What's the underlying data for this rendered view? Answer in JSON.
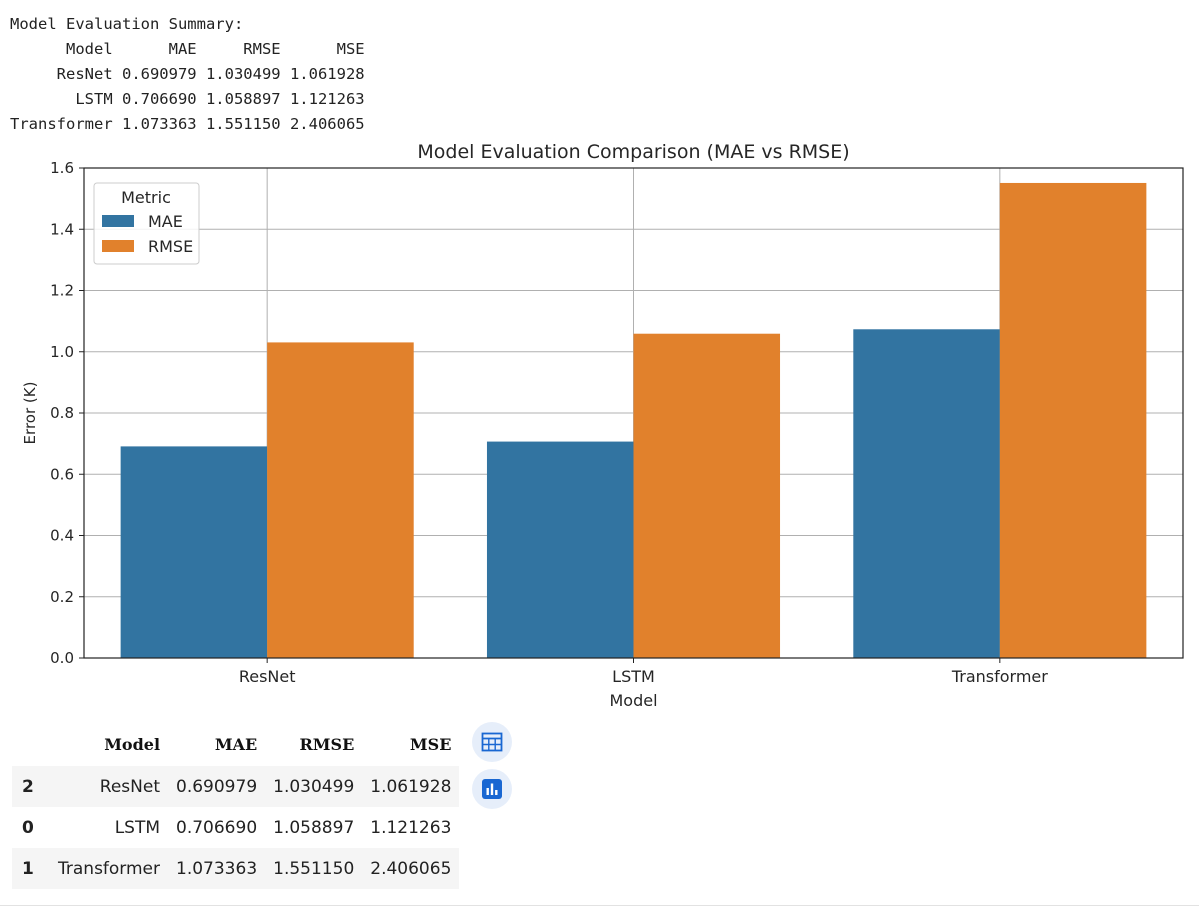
{
  "console_output": {
    "lines": [
      "Model Evaluation Summary:",
      "      Model      MAE     RMSE      MSE",
      "     ResNet 0.690979 1.030499 1.061928",
      "       LSTM 0.706690 1.058897 1.121263",
      "Transformer 1.073363 1.551150 2.406065"
    ]
  },
  "chart_data": {
    "type": "bar",
    "title": "Model Evaluation Comparison (MAE vs RMSE)",
    "xlabel": "Model",
    "ylabel": "Error (K)",
    "categories": [
      "ResNet",
      "LSTM",
      "Transformer"
    ],
    "series": [
      {
        "name": "MAE",
        "color": "#3274a1",
        "values": [
          0.690979,
          0.70669,
          1.073363
        ]
      },
      {
        "name": "RMSE",
        "color": "#e1812c",
        "values": [
          1.030499,
          1.058897,
          1.55115
        ]
      }
    ],
    "ylim": [
      0,
      1.6
    ],
    "yticks": [
      "0.0",
      "0.2",
      "0.4",
      "0.6",
      "0.8",
      "1.0",
      "1.2",
      "1.4",
      "1.6"
    ],
    "grid": true,
    "legend": {
      "title": "Metric",
      "position": "upper-left"
    }
  },
  "dataframe": {
    "columns": [
      "",
      "Model",
      "MAE",
      "RMSE",
      "MSE"
    ],
    "rows": [
      [
        "2",
        "ResNet",
        "0.690979",
        "1.030499",
        "1.061928"
      ],
      [
        "0",
        "LSTM",
        "0.706690",
        "1.058897",
        "1.121263"
      ],
      [
        "1",
        "Transformer",
        "1.073363",
        "1.551150",
        "2.406065"
      ]
    ]
  },
  "actions": {
    "table_icon": "table-icon",
    "chart_icon": "bar-chart-icon"
  }
}
